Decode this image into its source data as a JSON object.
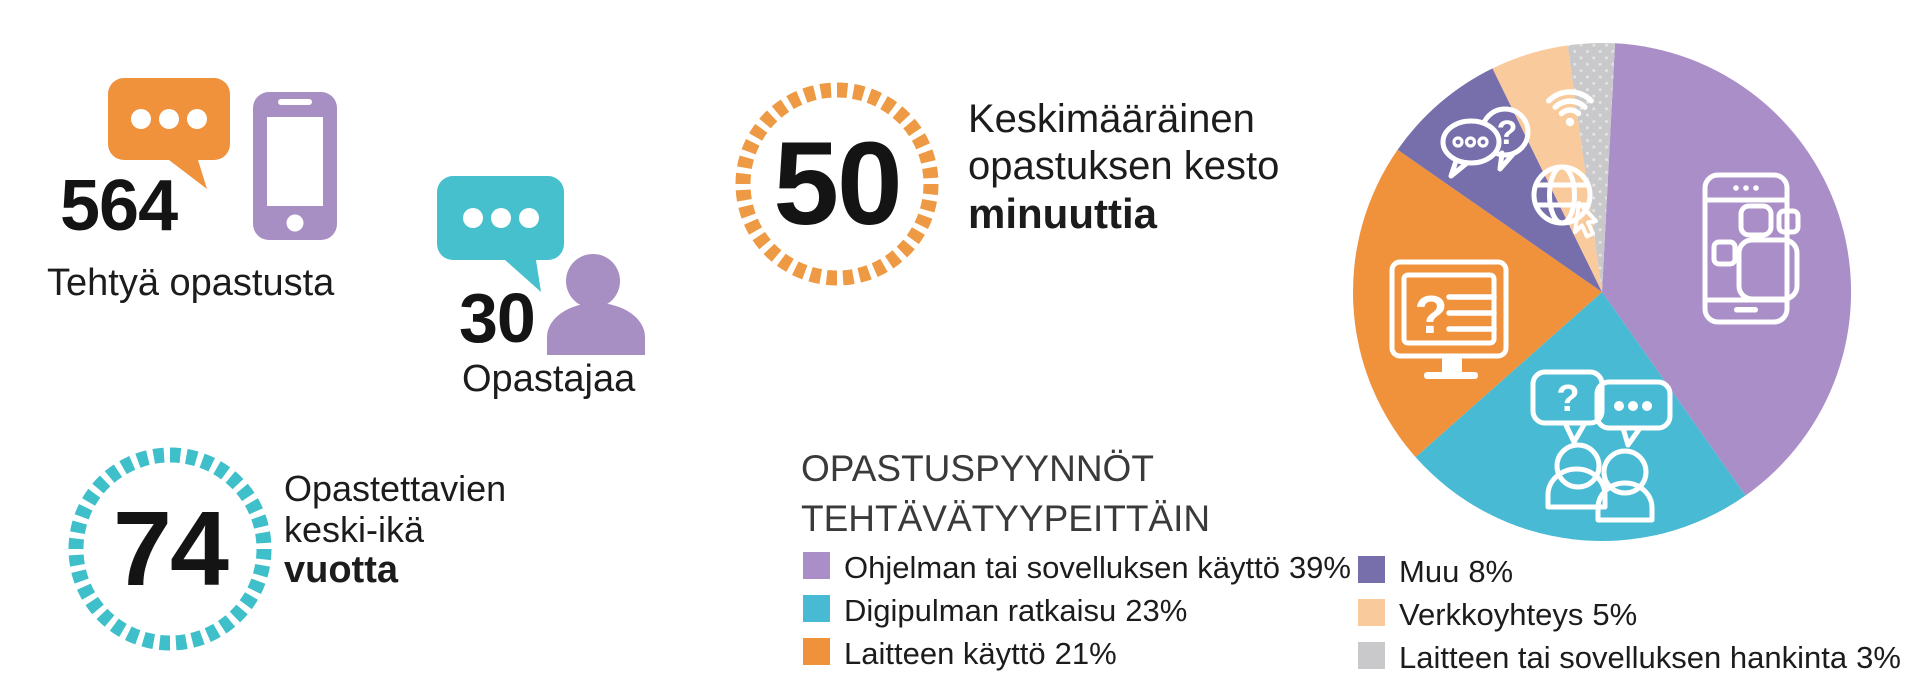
{
  "palette": {
    "orange": "#F0913C",
    "light_purple": "#A98EC7",
    "teal": "#47C0CD",
    "dark_purple": "#766FAB",
    "peach": "#F9CA9B",
    "gray": "#C9C9CB",
    "text_black": "#1C1C1C"
  },
  "icons": {
    "question_glyph": "?"
  },
  "stats": {
    "guidances": {
      "value": "564",
      "label": "Tehtyä opastusta"
    },
    "guides": {
      "value": "30",
      "label": "Opastajaa"
    },
    "duration": {
      "value": "50",
      "line1": "Keskimääräinen",
      "line2": "opastuksen kesto",
      "line3_bold": "minuuttia"
    },
    "age": {
      "value": "74",
      "line1": "Opastettavien",
      "line2": "keski-ikä",
      "line3_bold": "vuotta"
    }
  },
  "legend": {
    "title_line1": "OPASTUSPYYNNÖT",
    "title_line2": "TEHTÄVÄTYYPEITTÄIN"
  },
  "chart_data": {
    "type": "pie",
    "title": "OPASTUSPYYNNÖT TEHTÄVÄTYYPEITTÄIN",
    "labels": [
      "Ohjelman tai sovelluksen käyttö",
      "Digipulman ratkaisu",
      "Laitteen käyttö",
      "Muu",
      "Verkkoyhteys",
      "Laitteen tai sovelluksen hankinta"
    ],
    "values": [
      39,
      23,
      21,
      8,
      5,
      3
    ],
    "unit": "%",
    "colors": [
      "#A98EC7",
      "#49BAD4",
      "#F0913C",
      "#766FAB",
      "#F9CA9B",
      "#C9C9CB"
    ],
    "start_angle_deg": 3,
    "direction": "clockwise",
    "legend_position": "bottom",
    "slice_icons": [
      "smartphone-apps-icon",
      "people-chat-icon",
      "monitor-question-icon",
      "chat-bubbles-icon",
      "wifi-globe-icon",
      "dotted-texture"
    ],
    "legend_items": [
      {
        "label": "Ohjelman tai sovelluksen käyttö",
        "value_text": "39%",
        "color": "#A98EC7"
      },
      {
        "label": "Digipulman ratkaisu",
        "value_text": "23%",
        "color": "#49BAD4"
      },
      {
        "label": "Laitteen käyttö",
        "value_text": "21%",
        "color": "#F0913C"
      },
      {
        "label": "Muu",
        "value_text": "8%",
        "color": "#766FAB"
      },
      {
        "label": "Verkkoyhteys",
        "value_text": "5%",
        "color": "#F9CA9B"
      },
      {
        "label": "Laitteen tai sovelluksen hankinta",
        "value_text": "3%",
        "color": "#C9C9CB"
      }
    ]
  }
}
